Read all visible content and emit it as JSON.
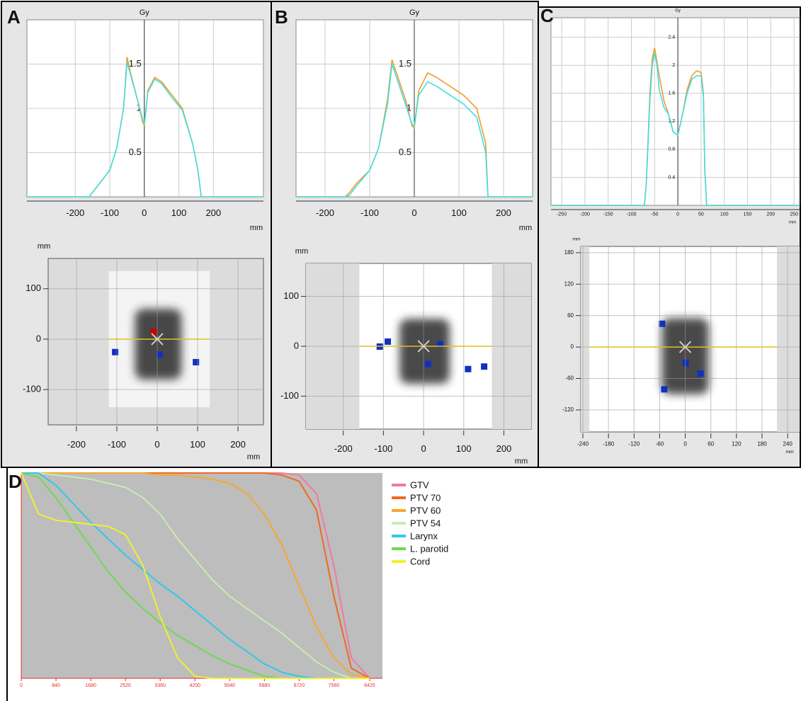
{
  "panel_labels": [
    "A",
    "B",
    "C",
    "D"
  ],
  "chart_data": [
    {
      "type": "profile",
      "y_label": "Gy",
      "x_label": "mm",
      "xlim": [
        -340,
        345
      ],
      "ylim": [
        0,
        2.0
      ],
      "xticks": [
        -200,
        -100,
        0,
        100,
        200
      ],
      "yticks": [
        0.5,
        1,
        1.5
      ],
      "grid": true,
      "x": [
        -340,
        -160,
        -150,
        -130,
        -100,
        -80,
        -60,
        -50,
        -40,
        -20,
        -5,
        0,
        10,
        30,
        50,
        80,
        110,
        140,
        155,
        165,
        345
      ],
      "series": [
        {
          "color": "#f39a2b",
          "values": [
            0,
            0,
            0.05,
            0.15,
            0.3,
            0.55,
            1.0,
            1.58,
            1.4,
            1.1,
            0.85,
            0.8,
            1.2,
            1.35,
            1.3,
            1.15,
            1.0,
            0.6,
            0.3,
            0,
            0
          ]
        },
        {
          "color": "#3fe0e0",
          "values": [
            0,
            0,
            0.05,
            0.15,
            0.3,
            0.55,
            1.0,
            1.52,
            1.38,
            1.1,
            0.88,
            0.82,
            1.18,
            1.33,
            1.28,
            1.12,
            0.98,
            0.6,
            0.3,
            0,
            0
          ]
        }
      ]
    },
    {
      "type": "profile",
      "y_label": "Gy",
      "x_label": "mm",
      "xlim": [
        -265,
        265
      ],
      "ylim": [
        0,
        2.0
      ],
      "xticks": [
        -200,
        -100,
        0,
        100,
        200
      ],
      "yticks": [
        0.5,
        1,
        1.5
      ],
      "grid": true,
      "x": [
        -265,
        -155,
        -145,
        -130,
        -100,
        -80,
        -60,
        -50,
        -40,
        -20,
        -5,
        0,
        10,
        30,
        50,
        80,
        110,
        140,
        160,
        165,
        265
      ],
      "series": [
        {
          "color": "#f39a2b",
          "values": [
            0,
            0,
            0.05,
            0.15,
            0.3,
            0.55,
            1.1,
            1.55,
            1.4,
            1.1,
            0.8,
            0.78,
            1.2,
            1.4,
            1.35,
            1.25,
            1.15,
            1.0,
            0.6,
            0,
            0
          ]
        },
        {
          "color": "#3fe0e0",
          "values": [
            0,
            0,
            0.02,
            0.12,
            0.3,
            0.55,
            1.05,
            1.5,
            1.35,
            1.05,
            0.82,
            0.8,
            1.15,
            1.3,
            1.25,
            1.15,
            1.05,
            0.9,
            0.5,
            0,
            0
          ]
        }
      ]
    },
    {
      "type": "profile",
      "y_label": "Gy",
      "x_label": "mm",
      "xlim": [
        -273,
        262
      ],
      "ylim": [
        0,
        2.68
      ],
      "xticks": [
        -250,
        -200,
        -150,
        -100,
        -50,
        0,
        50,
        100,
        150,
        200,
        250
      ],
      "yticks": [
        0.4,
        0.8,
        1.2,
        1.6,
        2,
        2.4
      ],
      "grid": true,
      "x": [
        -273,
        -72,
        -68,
        -60,
        -55,
        -50,
        -45,
        -40,
        -30,
        -20,
        -10,
        0,
        10,
        20,
        30,
        40,
        50,
        55,
        58,
        62,
        262
      ],
      "series": [
        {
          "color": "#f39a2b",
          "values": [
            0,
            0,
            0.3,
            1.6,
            2.1,
            2.25,
            2.05,
            1.85,
            1.5,
            1.3,
            1.05,
            1.0,
            1.3,
            1.65,
            1.85,
            1.92,
            1.9,
            1.6,
            0.5,
            0,
            0
          ]
        },
        {
          "color": "#3fe0e0",
          "values": [
            0,
            0,
            0.3,
            1.5,
            2.0,
            2.18,
            2.0,
            1.65,
            1.4,
            1.3,
            1.05,
            1.0,
            1.3,
            1.6,
            1.8,
            1.85,
            1.85,
            1.55,
            0.5,
            0,
            0
          ]
        }
      ]
    },
    {
      "type": "dose-map",
      "y_label": "mm",
      "x_label": "mm",
      "xlim": [
        -270,
        263
      ],
      "ylim": [
        -170,
        160
      ],
      "xticks": [
        -200,
        -100,
        0,
        100,
        200
      ],
      "yticks": [
        100,
        0,
        -100
      ],
      "grid": true
    },
    {
      "type": "dose-map",
      "y_label": "mm",
      "x_label": "mm",
      "xlim": [
        -293,
        268
      ],
      "ylim": [
        -166,
        166
      ],
      "xticks": [
        -200,
        -100,
        0,
        100,
        200
      ],
      "yticks": [
        100,
        0,
        -100
      ],
      "grid": true
    },
    {
      "type": "dose-map",
      "y_label": "mm",
      "x_label": "mm",
      "xlim": [
        -245,
        268
      ],
      "ylim": [
        -162,
        192
      ],
      "xticks": [
        -240,
        -180,
        -120,
        -60,
        0,
        60,
        120,
        180,
        240
      ],
      "yticks": [
        180,
        120,
        60,
        0,
        -60,
        -120
      ],
      "grid": true
    },
    {
      "type": "dvh",
      "xlim": [
        0,
        8734
      ],
      "ylim": [
        0,
        100
      ],
      "xticks": [
        0,
        840,
        1680,
        2520,
        3360,
        4200,
        5040,
        5880,
        6720,
        7560,
        8425
      ],
      "x": [
        0,
        420,
        840,
        1260,
        1680,
        2100,
        2520,
        2940,
        3360,
        3780,
        4200,
        4620,
        5040,
        5460,
        5880,
        6300,
        6720,
        7140,
        7560,
        7980,
        8425
      ],
      "series": [
        {
          "name": "GTV",
          "color": "#f07aa0",
          "values": [
            100,
            100,
            100,
            100,
            100,
            100,
            100,
            100,
            100,
            100,
            100,
            100,
            100,
            100,
            100,
            100,
            99,
            90,
            55,
            10,
            0
          ]
        },
        {
          "name": "PTV 70",
          "color": "#f06a20",
          "values": [
            100,
            100,
            100,
            100,
            100,
            100,
            100,
            100,
            100,
            100,
            100,
            100,
            100,
            100,
            100,
            99,
            96,
            82,
            40,
            5,
            0
          ]
        },
        {
          "name": "PTV 60",
          "color": "#f5a830",
          "values": [
            100,
            100,
            100,
            100,
            100,
            100,
            100,
            100,
            99,
            99,
            98,
            97,
            95,
            90,
            80,
            65,
            45,
            25,
            10,
            2,
            0
          ]
        },
        {
          "name": "PTV 54",
          "color": "#c8ecb0",
          "values": [
            100,
            100,
            99,
            98,
            97,
            95,
            93,
            88,
            80,
            68,
            58,
            48,
            40,
            34,
            28,
            22,
            15,
            8,
            3,
            0,
            0
          ]
        },
        {
          "name": "Larynx",
          "color": "#30c8e8",
          "values": [
            100,
            100,
            94,
            85,
            76,
            68,
            60,
            53,
            46,
            40,
            33,
            26,
            19,
            13,
            7,
            3,
            1,
            0,
            0,
            0,
            0
          ]
        },
        {
          "name": "L. parotid",
          "color": "#70d850",
          "values": [
            100,
            98,
            88,
            76,
            64,
            52,
            42,
            34,
            27,
            21,
            16,
            11,
            7,
            4,
            1,
            0,
            0,
            0,
            0,
            0,
            0
          ]
        },
        {
          "name": "Cord",
          "color": "#f0f030",
          "values": [
            100,
            80,
            77,
            76,
            75,
            74,
            70,
            55,
            30,
            10,
            1,
            0,
            0,
            0,
            0,
            0,
            0,
            0,
            0,
            0,
            0
          ]
        }
      ]
    }
  ]
}
